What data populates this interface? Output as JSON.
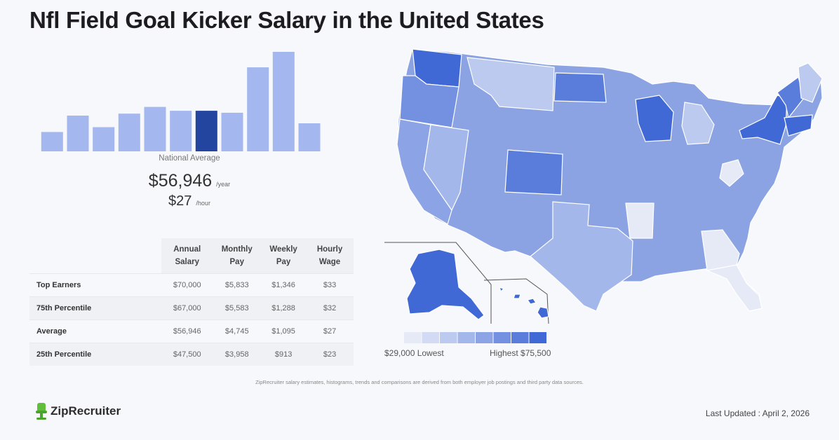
{
  "title": "Nfl Field Goal Kicker Salary in the United States",
  "national": {
    "label": "National Average",
    "annual": "$56,946",
    "annual_unit": "/year",
    "hourly": "$27",
    "hourly_unit": "/hour"
  },
  "chart_data": [
    {
      "type": "bar",
      "title": "",
      "categories": [
        "",
        "",
        "",
        "",
        "",
        "",
        "",
        "",
        "",
        "",
        "",
        ""
      ],
      "values": [
        2,
        3.7,
        2.5,
        3.9,
        4.6,
        4.2,
        4.2,
        4.0,
        8.7,
        10.3,
        2.9,
        0
      ],
      "highlight_index": 6,
      "colors": {
        "bar": "#a4b7ee",
        "highlight": "#2345a0"
      }
    },
    {
      "type": "table",
      "columns": [
        "",
        "Annual Salary",
        "Monthly Pay",
        "Weekly Pay",
        "Hourly Wage"
      ],
      "rows": [
        [
          "Top Earners",
          "$70,000",
          "$5,833",
          "$1,346",
          "$33"
        ],
        [
          "75th Percentile",
          "$67,000",
          "$5,583",
          "$1,288",
          "$32"
        ],
        [
          "Average",
          "$56,946",
          "$4,745",
          "$1,095",
          "$27"
        ],
        [
          "25th Percentile",
          "$47,500",
          "$3,958",
          "$913",
          "$23"
        ]
      ]
    }
  ],
  "map": {
    "legend_low": "$29,000 Lowest",
    "legend_high": "Highest $75,500",
    "legend_colors": [
      "#e6eaf6",
      "#d2dbf3",
      "#bccaf0",
      "#a4b7ea",
      "#8ca4e5",
      "#7391e0",
      "#5a7ddb",
      "#4069d6"
    ],
    "base_color": "#8ba3e3"
  },
  "footnote": "ZipRecruiter salary estimates, histograms, trends and comparisons are derived from both employer job postings and third party data sources.",
  "logo_text": "ZipRecruiter",
  "last_updated": "Last Updated : April 2, 2026"
}
